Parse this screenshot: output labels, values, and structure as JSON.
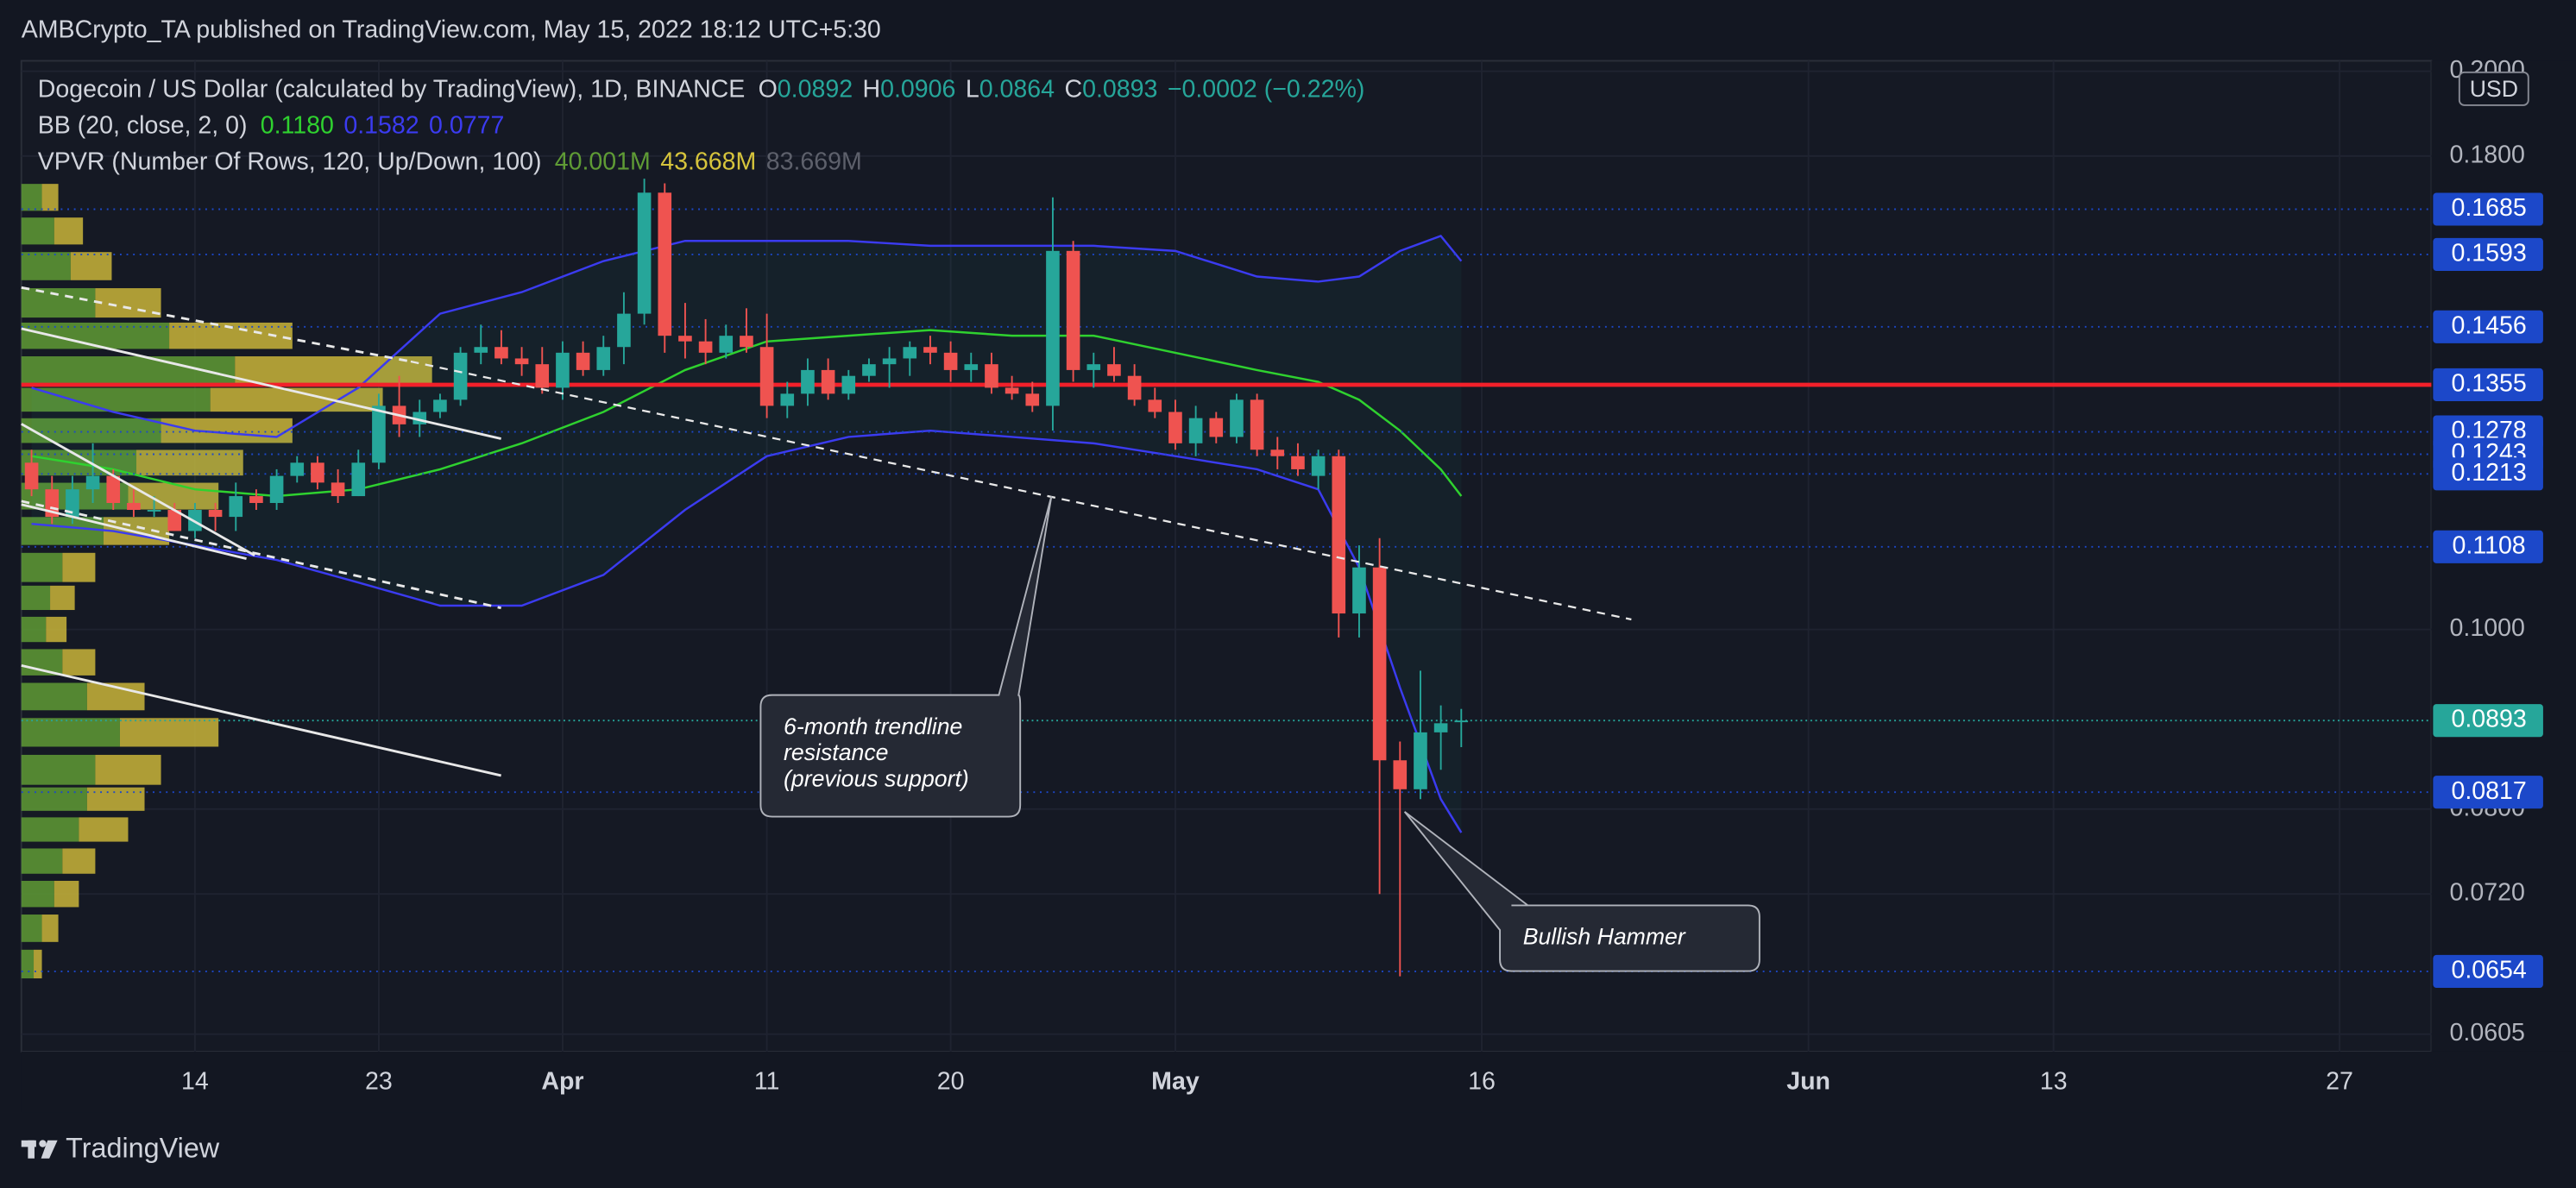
{
  "chart_data": {
    "type": "candlestick",
    "header": "AMBCrypto_TA published on TradingView.com, May 15, 2022 18:12 UTC+5:30",
    "brand": "TradingView",
    "currency": "USD",
    "legend": [
      {
        "name": "Dogecoin / US Dollar (calculated by TradingView), 1D, BINANCE",
        "items": [
          {
            "key": "O",
            "value": "0.0892",
            "color": "#26a69a"
          },
          {
            "key": "H",
            "value": "0.0906",
            "color": "#26a69a"
          },
          {
            "key": "L",
            "value": "0.0864",
            "color": "#26a69a"
          },
          {
            "key": "C",
            "value": "0.0893",
            "color": "#26a69a"
          },
          {
            "value": "−0.0002 (−0.22%)",
            "color": "#26a69a"
          }
        ]
      },
      {
        "name": "BB (20, close, 2, 0)",
        "items": [
          {
            "value": "0.1180",
            "color": "#2fd12f"
          },
          {
            "value": "0.1582",
            "color": "#3b3bf0"
          },
          {
            "value": "0.0777",
            "color": "#3b3bf0"
          }
        ]
      },
      {
        "name": "VPVR (Number Of Rows, 120, Up/Down, 100)",
        "items": [
          {
            "value": "40.001M",
            "color": "#5f9b35"
          },
          {
            "value": "43.668M",
            "color": "#d6c43c"
          },
          {
            "value": "83.669M",
            "color": "#5d606b"
          }
        ]
      }
    ],
    "x": [
      "Mar 6",
      "Mar 7",
      "Mar 8",
      "Mar 9",
      "Mar 10",
      "Mar 11",
      "Mar 12",
      "Mar 13",
      "Mar 14",
      "Mar 15",
      "Mar 16",
      "Mar 17",
      "Mar 18",
      "Mar 19",
      "Mar 20",
      "Mar 21",
      "Mar 22",
      "Mar 23",
      "Mar 24",
      "Mar 25",
      "Mar 26",
      "Mar 27",
      "Mar 28",
      "Mar 29",
      "Mar 30",
      "Mar 31",
      "Apr 1",
      "Apr 2",
      "Apr 3",
      "Apr 4",
      "Apr 5",
      "Apr 6",
      "Apr 7",
      "Apr 8",
      "Apr 9",
      "Apr 10",
      "Apr 11",
      "Apr 12",
      "Apr 13",
      "Apr 14",
      "Apr 15",
      "Apr 16",
      "Apr 17",
      "Apr 18",
      "Apr 19",
      "Apr 20",
      "Apr 21",
      "Apr 22",
      "Apr 23",
      "Apr 24",
      "Apr 25",
      "Apr 26",
      "Apr 27",
      "Apr 28",
      "Apr 29",
      "Apr 30",
      "May 1",
      "May 2",
      "May 3",
      "May 4",
      "May 5",
      "May 6",
      "May 7",
      "May 8",
      "May 9",
      "May 10",
      "May 11",
      "May 12",
      "May 13",
      "May 14",
      "May 15"
    ],
    "open": [
      0.123,
      0.119,
      0.115,
      0.119,
      0.121,
      0.117,
      0.116,
      0.116,
      0.113,
      0.116,
      0.115,
      0.118,
      0.117,
      0.121,
      0.123,
      0.12,
      0.118,
      0.123,
      0.132,
      0.129,
      0.131,
      0.133,
      0.141,
      0.142,
      0.14,
      0.139,
      0.135,
      0.141,
      0.138,
      0.142,
      0.148,
      0.172,
      0.144,
      0.143,
      0.141,
      0.144,
      0.142,
      0.132,
      0.134,
      0.138,
      0.134,
      0.137,
      0.139,
      0.14,
      0.142,
      0.141,
      0.138,
      0.139,
      0.135,
      0.134,
      0.132,
      0.16,
      0.138,
      0.139,
      0.137,
      0.133,
      0.131,
      0.126,
      0.13,
      0.127,
      0.133,
      0.125,
      0.124,
      0.121,
      0.124,
      0.102,
      0.108,
      0.085,
      0.082,
      0.088,
      0.0892
    ],
    "high": [
      0.125,
      0.121,
      0.121,
      0.126,
      0.122,
      0.119,
      0.118,
      0.117,
      0.117,
      0.117,
      0.12,
      0.119,
      0.122,
      0.124,
      0.124,
      0.122,
      0.125,
      0.134,
      0.137,
      0.133,
      0.134,
      0.142,
      0.146,
      0.145,
      0.142,
      0.142,
      0.143,
      0.143,
      0.144,
      0.152,
      0.175,
      0.174,
      0.15,
      0.147,
      0.146,
      0.149,
      0.148,
      0.136,
      0.14,
      0.14,
      0.138,
      0.14,
      0.142,
      0.143,
      0.144,
      0.143,
      0.141,
      0.141,
      0.137,
      0.136,
      0.171,
      0.162,
      0.141,
      0.142,
      0.139,
      0.135,
      0.133,
      0.132,
      0.131,
      0.134,
      0.134,
      0.127,
      0.126,
      0.125,
      0.125,
      0.111,
      0.112,
      0.087,
      0.095,
      0.091,
      0.0906
    ],
    "low": [
      0.118,
      0.114,
      0.114,
      0.117,
      0.116,
      0.115,
      0.115,
      0.113,
      0.112,
      0.113,
      0.113,
      0.116,
      0.116,
      0.12,
      0.119,
      0.117,
      0.118,
      0.122,
      0.127,
      0.127,
      0.13,
      0.132,
      0.139,
      0.139,
      0.137,
      0.134,
      0.133,
      0.137,
      0.137,
      0.139,
      0.146,
      0.141,
      0.14,
      0.139,
      0.14,
      0.141,
      0.13,
      0.13,
      0.132,
      0.133,
      0.133,
      0.136,
      0.135,
      0.137,
      0.139,
      0.136,
      0.136,
      0.134,
      0.133,
      0.131,
      0.128,
      0.136,
      0.135,
      0.136,
      0.132,
      0.13,
      0.125,
      0.124,
      0.126,
      0.126,
      0.124,
      0.122,
      0.121,
      0.119,
      0.099,
      0.099,
      0.072,
      0.065,
      0.081,
      0.084,
      0.0864
    ],
    "close": [
      0.119,
      0.115,
      0.119,
      0.121,
      0.117,
      0.116,
      0.116,
      0.113,
      0.116,
      0.115,
      0.118,
      0.117,
      0.121,
      0.123,
      0.12,
      0.118,
      0.123,
      0.132,
      0.129,
      0.131,
      0.133,
      0.141,
      0.142,
      0.14,
      0.139,
      0.135,
      0.141,
      0.138,
      0.142,
      0.148,
      0.172,
      0.144,
      0.143,
      0.141,
      0.144,
      0.142,
      0.132,
      0.134,
      0.138,
      0.134,
      0.137,
      0.139,
      0.14,
      0.142,
      0.141,
      0.138,
      0.139,
      0.135,
      0.134,
      0.132,
      0.16,
      0.138,
      0.139,
      0.137,
      0.133,
      0.131,
      0.126,
      0.13,
      0.127,
      0.133,
      0.125,
      0.124,
      0.122,
      0.124,
      0.102,
      0.108,
      0.085,
      0.082,
      0.088,
      0.089,
      0.0893
    ],
    "up_color": "#26a69a",
    "down_color": "#ef5350",
    "xlim": [
      "Mar 6",
      "Jul 1"
    ],
    "xticks": [
      {
        "value": "Mar 14",
        "label": "14"
      },
      {
        "value": "Mar 23",
        "label": "23"
      },
      {
        "value": "Apr 1",
        "label": "Apr"
      },
      {
        "value": "Apr 11",
        "label": "11"
      },
      {
        "value": "Apr 20",
        "label": "20"
      },
      {
        "value": "May 1",
        "label": "May"
      },
      {
        "value": "May 16",
        "label": "16"
      },
      {
        "value": "Jun 1",
        "label": "Jun"
      },
      {
        "value": "Jun 13",
        "label": "13"
      },
      {
        "value": "Jun 27",
        "label": "27"
      }
    ],
    "ylim": [
      0.0592,
      0.2026
    ],
    "yticks": [
      {
        "value": 0.2,
        "label": "0.2000"
      },
      {
        "value": 0.18,
        "label": "0.1800"
      },
      {
        "value": 0.1,
        "label": "0.1000"
      },
      {
        "value": 0.08,
        "label": "0.0800"
      },
      {
        "value": 0.072,
        "label": "0.0720"
      },
      {
        "value": 0.0605,
        "label": "0.0605"
      }
    ],
    "log_scale": true,
    "grid": true,
    "bb": {
      "x": [
        "Mar 6",
        "Mar 10",
        "Mar 14",
        "Mar 18",
        "Mar 22",
        "Mar 26",
        "Mar 30",
        "Apr 3",
        "Apr 7",
        "Apr 11",
        "Apr 15",
        "Apr 19",
        "Apr 23",
        "Apr 27",
        "May 1",
        "May 5",
        "May 8",
        "May 10",
        "May 12",
        "May 14",
        "May 15"
      ],
      "upper": [
        0.135,
        0.131,
        0.128,
        0.127,
        0.135,
        0.148,
        0.152,
        0.158,
        0.162,
        0.162,
        0.162,
        0.161,
        0.161,
        0.161,
        0.16,
        0.155,
        0.154,
        0.155,
        0.16,
        0.163,
        0.158
      ],
      "middle": [
        0.124,
        0.122,
        0.119,
        0.118,
        0.119,
        0.122,
        0.126,
        0.131,
        0.138,
        0.143,
        0.144,
        0.145,
        0.144,
        0.144,
        0.141,
        0.138,
        0.136,
        0.133,
        0.128,
        0.122,
        0.118
      ],
      "lower": [
        0.114,
        0.113,
        0.111,
        0.109,
        0.106,
        0.103,
        0.103,
        0.107,
        0.116,
        0.124,
        0.127,
        0.128,
        0.127,
        0.126,
        0.124,
        0.122,
        0.119,
        0.108,
        0.093,
        0.081,
        0.0777
      ],
      "band_color": "#3b3bf0",
      "middle_color": "#2fd12f"
    },
    "vpvr": {
      "prices": [
        0.066,
        0.069,
        0.072,
        0.075,
        0.078,
        0.081,
        0.084,
        0.088,
        0.092,
        0.096,
        0.1,
        0.104,
        0.108,
        0.113,
        0.118,
        0.123,
        0.128,
        0.133,
        0.138,
        0.144,
        0.15,
        0.157,
        0.164,
        0.171
      ],
      "up": [
        0.3,
        0.5,
        0.8,
        1.0,
        1.4,
        1.6,
        1.8,
        2.4,
        1.6,
        1.0,
        0.6,
        0.7,
        1.0,
        2.0,
        2.6,
        2.8,
        3.4,
        4.6,
        5.2,
        3.6,
        1.8,
        1.2,
        0.8,
        0.5
      ],
      "down": [
        0.2,
        0.4,
        0.6,
        0.8,
        1.2,
        1.4,
        1.6,
        2.4,
        1.4,
        0.8,
        0.5,
        0.6,
        0.8,
        1.6,
        2.2,
        2.6,
        3.2,
        4.2,
        4.8,
        3.0,
        1.6,
        1.0,
        0.7,
        0.4
      ],
      "up_color": "#5f9b35",
      "down_color": "#c9b53a"
    },
    "levels": [
      0.1685,
      0.1593,
      0.1456,
      0.1355,
      0.1278,
      0.1243,
      0.1213,
      0.1108,
      0.0817,
      0.0654
    ],
    "level_color": "#1c48c9",
    "last_price": 0.0893,
    "last_color": "#26a69a",
    "red_line": {
      "value": 0.1355,
      "color": "#f2202a"
    },
    "annotations": [
      {
        "lines": [
          "6-month trendline",
          "resistance",
          "(previous support)"
        ]
      },
      {
        "lines": [
          "Bullish Hammer"
        ]
      }
    ]
  }
}
